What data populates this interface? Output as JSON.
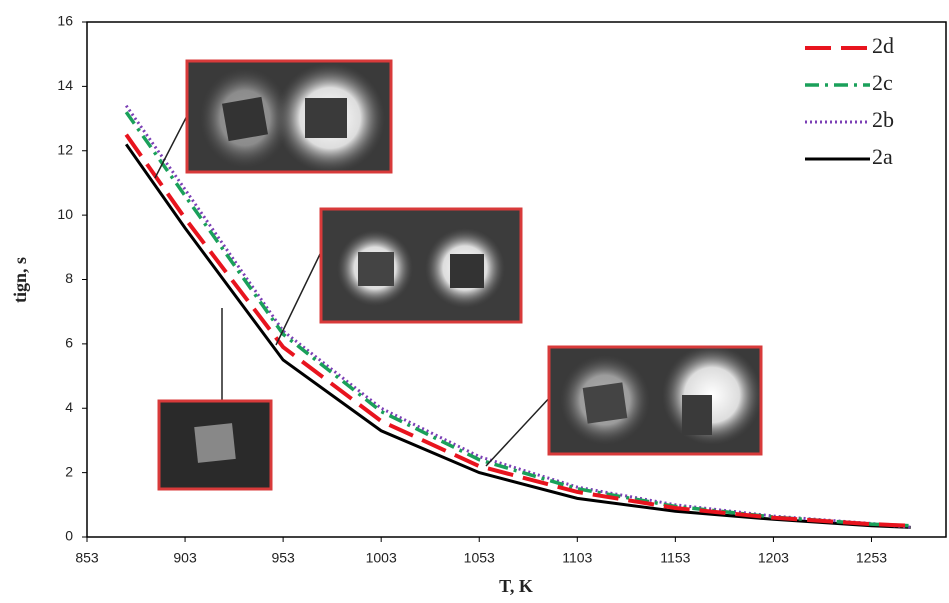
{
  "chart_data": {
    "type": "line",
    "x_label": "T, K",
    "y_label": "tign, s",
    "x": [
      873,
      903,
      953,
      1003,
      1053,
      1103,
      1153,
      1203,
      1253,
      1273
    ],
    "series": [
      {
        "name": "2d",
        "color": "#e8141e",
        "dash": "26 10",
        "width": 4,
        "values": [
          12.5,
          9.9,
          5.9,
          3.6,
          2.2,
          1.4,
          0.9,
          0.6,
          0.4,
          0.35
        ]
      },
      {
        "name": "2c",
        "color": "#1aa05a",
        "dash": "14 6 3 6",
        "width": 3.5,
        "values": [
          13.2,
          10.6,
          6.3,
          3.9,
          2.4,
          1.5,
          0.95,
          0.62,
          0.4,
          0.35
        ]
      },
      {
        "name": "2b",
        "color": "#7b3fb5",
        "dash": "2 3",
        "width": 3,
        "values": [
          13.4,
          10.8,
          6.4,
          4.0,
          2.5,
          1.55,
          1.0,
          0.65,
          0.42,
          0.3
        ]
      },
      {
        "name": "2a",
        "color": "#000000",
        "dash": "none",
        "width": 3,
        "values": [
          12.2,
          9.6,
          5.5,
          3.3,
          2.0,
          1.2,
          0.8,
          0.55,
          0.35,
          0.3
        ]
      }
    ],
    "xlim": [
      853,
      1291
    ],
    "xticks": [
      853,
      903,
      953,
      1003,
      1053,
      1103,
      1153,
      1203,
      1253
    ],
    "ylim": [
      0,
      16
    ],
    "yticks": [
      0,
      2,
      4,
      6,
      8,
      10,
      12,
      14,
      16
    ]
  }
}
